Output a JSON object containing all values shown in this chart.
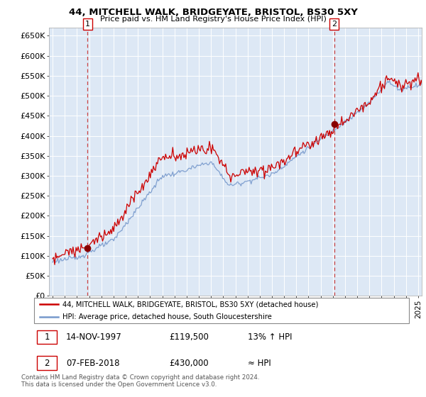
{
  "title": "44, MITCHELL WALK, BRIDGEYATE, BRISTOL, BS30 5XY",
  "subtitle": "Price paid vs. HM Land Registry's House Price Index (HPI)",
  "red_label": "44, MITCHELL WALK, BRIDGEYATE, BRISTOL, BS30 5XY (detached house)",
  "blue_label": "HPI: Average price, detached house, South Gloucestershire",
  "annotation1_date": "14-NOV-1997",
  "annotation1_price": "£119,500",
  "annotation1_note": "13% ↑ HPI",
  "annotation2_date": "07-FEB-2018",
  "annotation2_price": "£430,000",
  "annotation2_note": "≈ HPI",
  "footer": "Contains HM Land Registry data © Crown copyright and database right 2024.\nThis data is licensed under the Open Government Licence v3.0.",
  "ylim": [
    0,
    670000
  ],
  "yticks": [
    0,
    50000,
    100000,
    150000,
    200000,
    250000,
    300000,
    350000,
    400000,
    450000,
    500000,
    550000,
    600000,
    650000
  ],
  "red_color": "#cc0000",
  "blue_color": "#7799cc",
  "plot_bg_color": "#dde8f5",
  "marker_color": "#880000",
  "vline_color": "#cc4444",
  "background_color": "#ffffff",
  "grid_color": "#ffffff",
  "sale1_x": 1997.87,
  "sale1_y": 119500,
  "sale2_x": 2018.12,
  "sale2_y": 430000,
  "xmin": 1994.7,
  "xmax": 2025.3
}
